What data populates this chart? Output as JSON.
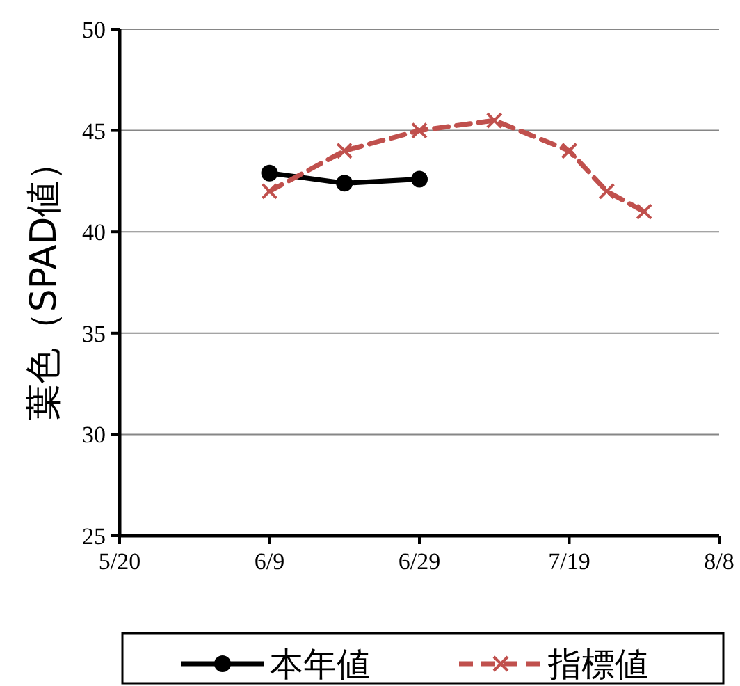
{
  "chart_data": {
    "type": "line",
    "ylabel": "葉色（SPAD値）",
    "xlim": [
      "--05-20",
      "--08-08"
    ],
    "xticks": [
      {
        "value": "--05-20",
        "label": "5/20"
      },
      {
        "value": "--06-09",
        "label": "6/9"
      },
      {
        "value": "--06-29",
        "label": "6/29"
      },
      {
        "value": "--07-19",
        "label": "7/19"
      },
      {
        "value": "--08-08",
        "label": "8/8"
      }
    ],
    "ylim": [
      25,
      50
    ],
    "yticks": [
      25,
      30,
      35,
      40,
      45,
      50
    ],
    "grid": "y",
    "legend": "bottom",
    "series": [
      {
        "name": "本年値",
        "color": "#000000",
        "marker": "circle",
        "line_style": "solid",
        "x": [
          "--06-09",
          "--06-19",
          "--06-29"
        ],
        "values": [
          42.9,
          42.4,
          42.6
        ]
      },
      {
        "name": "指標値",
        "color": "#c0504d",
        "marker": "cross",
        "line_style": "dashed",
        "x": [
          "--06-09",
          "--06-19",
          "--06-29",
          "--07-09",
          "--07-19",
          "--07-24",
          "--07-29"
        ],
        "values": [
          42,
          44,
          45,
          45.5,
          44,
          42,
          41
        ]
      }
    ]
  }
}
